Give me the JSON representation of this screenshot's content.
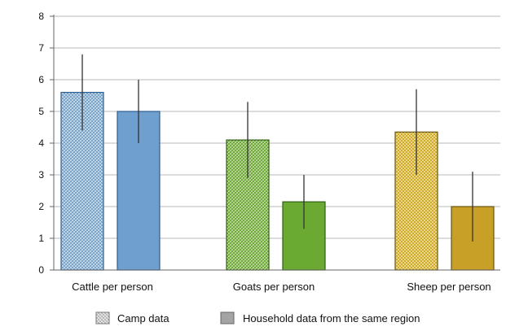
{
  "chart_data": {
    "type": "bar",
    "categories": [
      "Cattle per person",
      "Goats per person",
      "Sheep per person"
    ],
    "ylim": [
      0,
      8
    ],
    "yticks": [
      "0",
      "1",
      "2",
      "3",
      "4",
      "5",
      "6",
      "7",
      "8"
    ],
    "grid": true,
    "legend_position": "bottom",
    "series": [
      {
        "name": "Camp data",
        "pattern": "cross-hatched",
        "values": [
          5.6,
          4.1,
          4.35
        ],
        "error_high": [
          6.8,
          5.3,
          5.7
        ],
        "error_low": [
          4.4,
          2.9,
          3.0
        ]
      },
      {
        "name": "Household data from the same region",
        "pattern": "solid",
        "values": [
          5.0,
          2.15,
          2.0
        ],
        "error_high": [
          6.0,
          3.0,
          3.1
        ],
        "error_low": [
          4.0,
          1.3,
          0.9
        ]
      }
    ],
    "category_colors": [
      {
        "camp": "#8fb9e0",
        "household": "#6f9fcf",
        "stroke": "#2f5f8f"
      },
      {
        "camp": "#7fbc43",
        "household": "#6aaa32",
        "stroke": "#2f5f12"
      },
      {
        "camp": "#e8c132",
        "household": "#c9a027",
        "stroke": "#6b5510"
      }
    ],
    "legend": {
      "camp_swatch": "#d2d2d2",
      "household_swatch": "#a4a4a4"
    },
    "axis_color": "#666666",
    "grid_color": "#b9b9b9"
  }
}
